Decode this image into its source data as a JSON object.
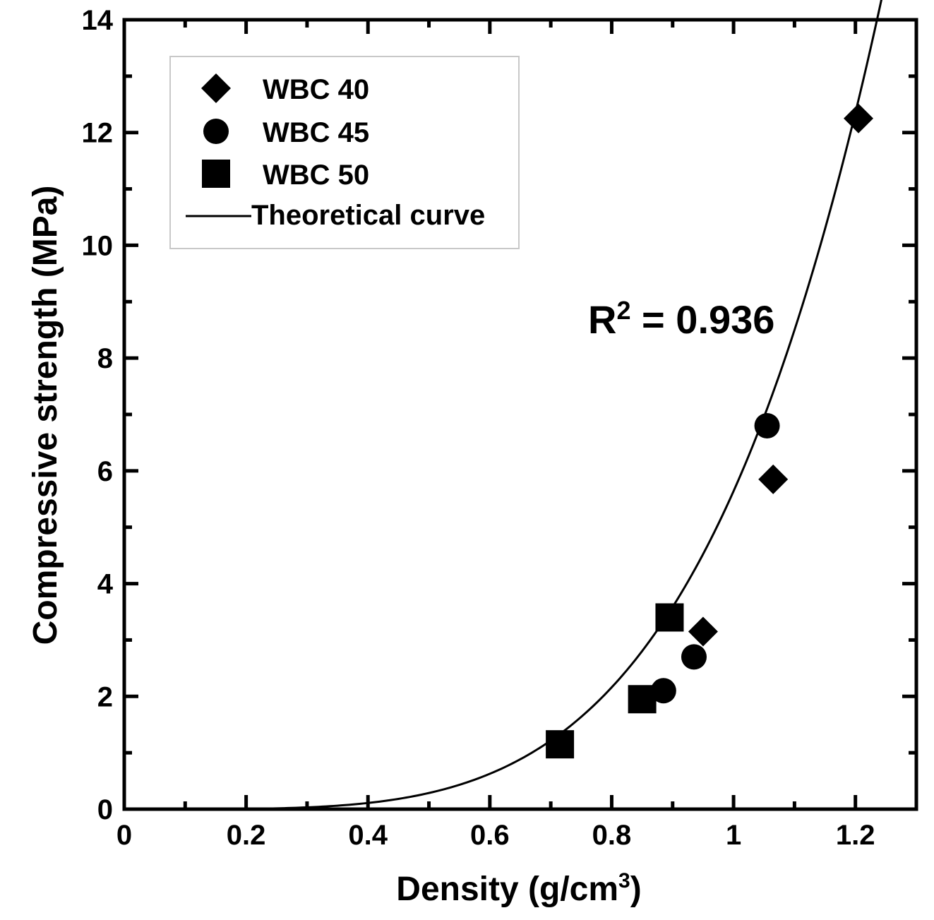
{
  "chart_data": {
    "type": "scatter",
    "xlabel": "Density (g/cm",
    "xlabel_sup": "3",
    "xlabel_close": ")",
    "ylabel": "Compressive strength (MPa)",
    "xlim": [
      0,
      1.3
    ],
    "ylim": [
      0,
      14
    ],
    "x_ticks": [
      0,
      0.2,
      0.4,
      0.6,
      0.8,
      1,
      1.2
    ],
    "x_tick_labels": [
      "0",
      "0.2",
      "0.4",
      "0.6",
      "0.8",
      "1",
      "1.2"
    ],
    "y_ticks": [
      0,
      2,
      4,
      6,
      8,
      10,
      12,
      14
    ],
    "y_tick_labels": [
      "0",
      "2",
      "4",
      "6",
      "8",
      "10",
      "12",
      "14"
    ],
    "x_minor_step": 0.1,
    "y_minor_step": 1,
    "series": [
      {
        "name": "WBC 40",
        "marker": "diamond",
        "points": [
          [
            0.95,
            3.15
          ],
          [
            1.065,
            5.85
          ],
          [
            1.205,
            12.25
          ]
        ]
      },
      {
        "name": "WBC 45",
        "marker": "circle",
        "points": [
          [
            0.885,
            2.1
          ],
          [
            0.935,
            2.7
          ],
          [
            1.055,
            6.8
          ]
        ]
      },
      {
        "name": "WBC 50",
        "marker": "square",
        "points": [
          [
            0.715,
            1.15
          ],
          [
            0.85,
            1.95
          ],
          [
            0.895,
            3.4
          ]
        ]
      }
    ],
    "curve": {
      "name": "Theoretical curve",
      "label": "Theoretical curve",
      "equation": "y = 5.64 * x^4.3",
      "coef": 5.64,
      "power": 4.3,
      "x_range": [
        0,
        1.25
      ]
    },
    "annotation": {
      "prefix": "R",
      "sup": "2",
      "suffix": " = 0.936"
    },
    "legend": {
      "position": "top-left",
      "entries": [
        "WBC 40",
        "WBC 45",
        "WBC 50",
        "Theoretical curve"
      ]
    },
    "colors": {
      "marker": "#000000",
      "curve": "#000000",
      "axis": "#000000",
      "legend_border": "#c8c8c8",
      "background": "#ffffff"
    }
  }
}
